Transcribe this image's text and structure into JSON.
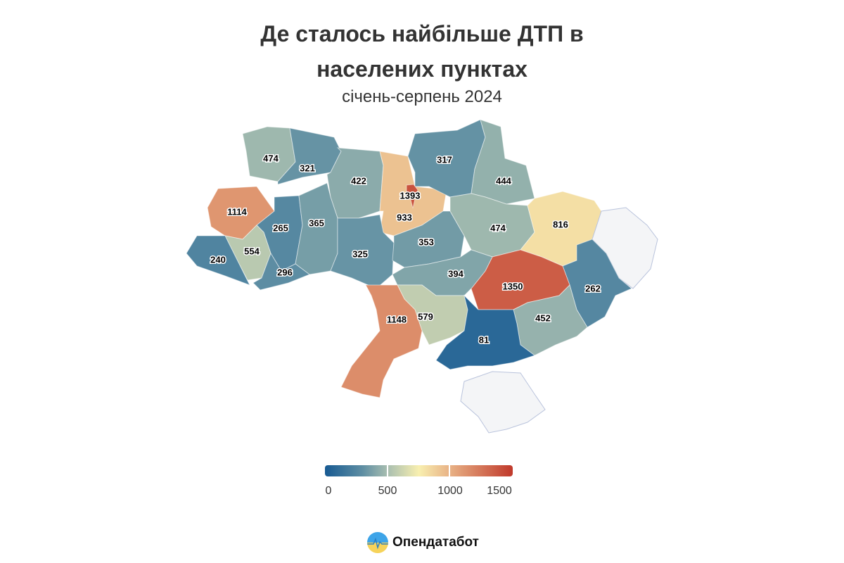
{
  "title_line1": "Де сталось найбільше ДТП в",
  "title_line2": "населених пунктах",
  "subtitle": "січень-серпень 2024",
  "legend": {
    "ticks": [
      "0",
      "500",
      "1000",
      "1500"
    ],
    "stops": [
      {
        "value": 0,
        "color": "#175a92"
      },
      {
        "value": 300,
        "color": "#5e8ea3"
      },
      {
        "value": 500,
        "color": "#a8beb0"
      },
      {
        "value": 750,
        "color": "#f8efb0"
      },
      {
        "value": 1000,
        "color": "#e8b185"
      },
      {
        "value": 1500,
        "color": "#c0392b"
      }
    ],
    "no_data_color": "#f4f5f7"
  },
  "regions": [
    {
      "id": "volyn",
      "value": 474,
      "label": "474"
    },
    {
      "id": "rivne",
      "value": 321,
      "label": "321"
    },
    {
      "id": "zhytomyr",
      "value": 422,
      "label": "422"
    },
    {
      "id": "kyiv-oblast",
      "value": 933,
      "label": "933"
    },
    {
      "id": "chernihiv",
      "value": 317,
      "label": "317"
    },
    {
      "id": "sumy",
      "value": 444,
      "label": "444"
    },
    {
      "id": "lviv",
      "value": 1114,
      "label": "1114"
    },
    {
      "id": "ternopil",
      "value": 265,
      "label": "265"
    },
    {
      "id": "khmelnytskyi",
      "value": 365,
      "label": "365"
    },
    {
      "id": "vinnytsia",
      "value": 325,
      "label": "325"
    },
    {
      "id": "cherkasy",
      "value": 353,
      "label": "353"
    },
    {
      "id": "ivano-frankivsk",
      "value": 554,
      "label": "554"
    },
    {
      "id": "zakarpattia",
      "value": 240,
      "label": "240"
    },
    {
      "id": "chernivtsi",
      "value": 296,
      "label": "296"
    },
    {
      "id": "poltava",
      "value": 474,
      "label": "474"
    },
    {
      "id": "kharkiv",
      "value": 816,
      "label": "816"
    },
    {
      "id": "luhansk",
      "value": null,
      "label": ""
    },
    {
      "id": "donetsk",
      "value": 262,
      "label": "262"
    },
    {
      "id": "dnipro",
      "value": 1350,
      "label": "1350"
    },
    {
      "id": "kirovohrad",
      "value": 394,
      "label": "394"
    },
    {
      "id": "zaporizhzhia",
      "value": 452,
      "label": "452"
    },
    {
      "id": "mykolaiv",
      "value": 579,
      "label": "579"
    },
    {
      "id": "odesa",
      "value": 1148,
      "label": "1148"
    },
    {
      "id": "kherson",
      "value": 81,
      "label": "81"
    },
    {
      "id": "crimea",
      "value": null,
      "label": ""
    },
    {
      "id": "kyiv-city",
      "value": 1393,
      "label": "1393"
    }
  ],
  "brand": "Опендатабот"
}
